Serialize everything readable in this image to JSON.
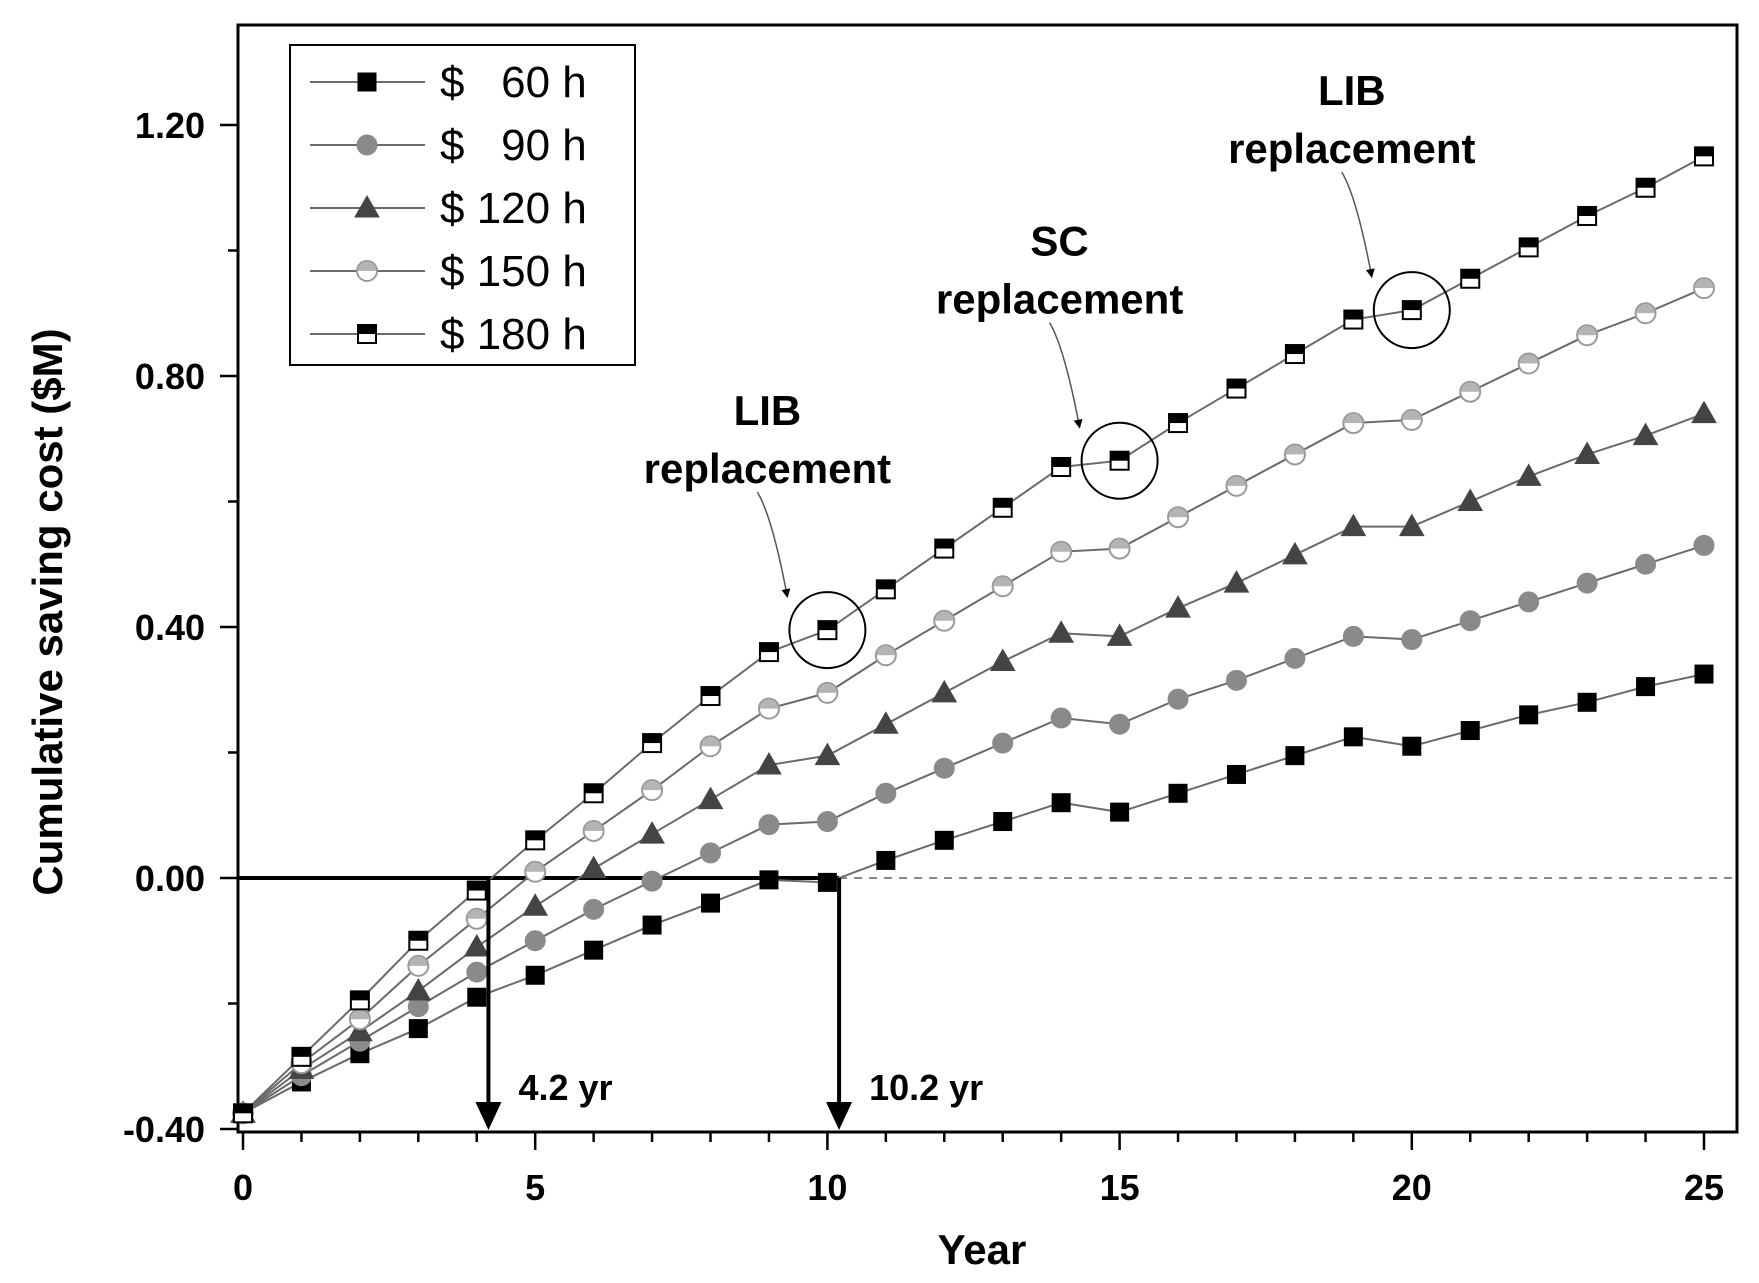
{
  "colors": {
    "s60": "#000000",
    "s90": "#8a8a8a",
    "s120": "#444444",
    "s150": "#b4b4b4",
    "s180": "#000000",
    "line": "#6a6a6a"
  },
  "chart_data": {
    "type": "line",
    "xlabel": "Year",
    "ylabel": "Cumulative saving cost ($M)",
    "xlim": [
      0,
      25.5
    ],
    "ylim": [
      -0.4,
      1.35
    ],
    "x_ticks": [
      0,
      5,
      10,
      15,
      20,
      25
    ],
    "x_tick_labels": [
      "0",
      "5",
      "10",
      "15",
      "20",
      "25"
    ],
    "y_ticks": [
      -0.4,
      0.0,
      0.4,
      0.8,
      1.2
    ],
    "y_tick_labels": [
      "-0.40",
      "0.00",
      "0.40",
      "0.80",
      "1.20"
    ],
    "x": [
      0,
      1,
      2,
      3,
      4,
      5,
      6,
      7,
      8,
      9,
      10,
      11,
      12,
      13,
      14,
      15,
      16,
      17,
      18,
      19,
      20,
      21,
      22,
      23,
      24,
      25
    ],
    "series": [
      {
        "name": "$   60 h",
        "marker": "square-filled",
        "values": [
          -0.375,
          -0.325,
          -0.28,
          -0.24,
          -0.19,
          -0.155,
          -0.115,
          -0.075,
          -0.04,
          -0.003,
          -0.007,
          0.028,
          0.06,
          0.09,
          0.12,
          0.105,
          0.135,
          0.165,
          0.195,
          0.225,
          0.21,
          0.235,
          0.26,
          0.28,
          0.305,
          0.325
        ]
      },
      {
        "name": "$   90 h",
        "marker": "circle-filled",
        "values": [
          -0.375,
          -0.315,
          -0.26,
          -0.205,
          -0.15,
          -0.1,
          -0.05,
          -0.005,
          0.04,
          0.085,
          0.09,
          0.135,
          0.175,
          0.215,
          0.255,
          0.245,
          0.285,
          0.315,
          0.35,
          0.385,
          0.38,
          0.41,
          0.44,
          0.47,
          0.5,
          0.53
        ]
      },
      {
        "name": "$ 120 h",
        "marker": "triangle-filled",
        "values": [
          -0.375,
          -0.305,
          -0.245,
          -0.18,
          -0.11,
          -0.045,
          0.015,
          0.07,
          0.125,
          0.18,
          0.195,
          0.245,
          0.295,
          0.345,
          0.39,
          0.385,
          0.43,
          0.47,
          0.515,
          0.56,
          0.56,
          0.6,
          0.64,
          0.675,
          0.705,
          0.74
        ]
      },
      {
        "name": "$ 150 h",
        "marker": "circle-half",
        "values": [
          -0.375,
          -0.295,
          -0.225,
          -0.14,
          -0.065,
          0.01,
          0.075,
          0.14,
          0.21,
          0.27,
          0.295,
          0.355,
          0.41,
          0.465,
          0.52,
          0.525,
          0.575,
          0.625,
          0.675,
          0.725,
          0.73,
          0.775,
          0.82,
          0.865,
          0.9,
          0.94
        ]
      },
      {
        "name": "$ 180 h",
        "marker": "square-half",
        "values": [
          -0.375,
          -0.285,
          -0.195,
          -0.1,
          -0.02,
          0.06,
          0.135,
          0.215,
          0.29,
          0.36,
          0.395,
          0.46,
          0.525,
          0.59,
          0.655,
          0.665,
          0.725,
          0.78,
          0.835,
          0.89,
          0.905,
          0.955,
          1.005,
          1.055,
          1.1,
          1.15
        ]
      }
    ],
    "legend": {
      "placement": "top-left",
      "entries": [
        "$   60 h",
        "$   90 h",
        "$ 120 h",
        "$ 150 h",
        "$ 180 h"
      ]
    },
    "annotations": [
      {
        "lines": [
          "LIB",
          "replacement"
        ],
        "x": 10,
        "y": 0.395
      },
      {
        "lines": [
          "SC",
          "replacement"
        ],
        "x": 15,
        "y": 0.665
      },
      {
        "lines": [
          "LIB",
          "replacement"
        ],
        "x": 20,
        "y": 0.905
      }
    ],
    "payback": [
      {
        "label": "4.2 yr",
        "x": 4.2
      },
      {
        "label": "10.2 yr",
        "x": 10.2
      }
    ]
  }
}
